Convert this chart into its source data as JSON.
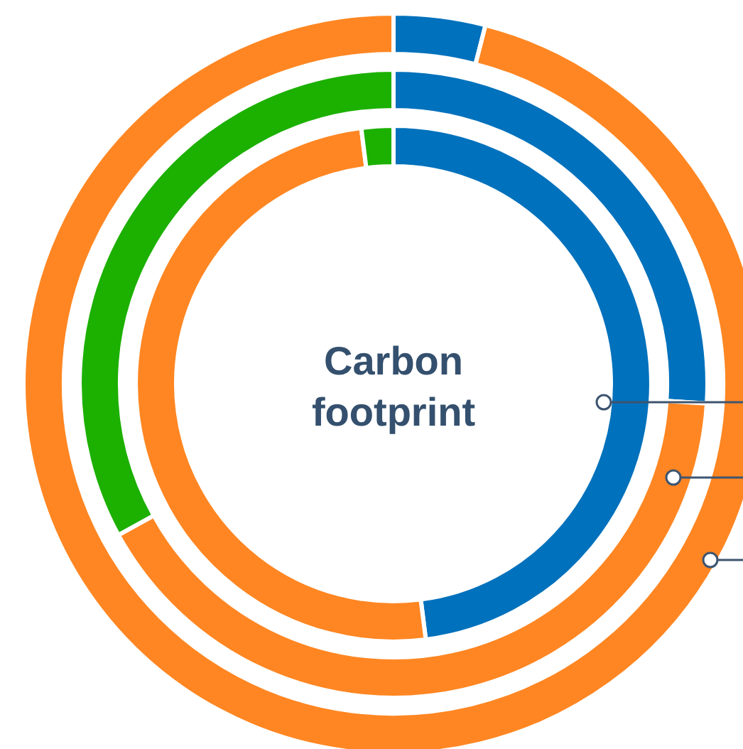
{
  "chart_data": {
    "type": "donut",
    "title": "Carbon footprint",
    "categories": [
      null,
      null,
      null
    ],
    "colors": [
      "#0071bc",
      "#ff8622",
      "#1cb000"
    ],
    "legend": false,
    "series": [
      {
        "values": [
          4,
          96,
          0
        ]
      },
      {
        "values": [
          26,
          41,
          33
        ]
      },
      {
        "values": [
          48,
          50,
          2
        ]
      }
    ]
  }
}
